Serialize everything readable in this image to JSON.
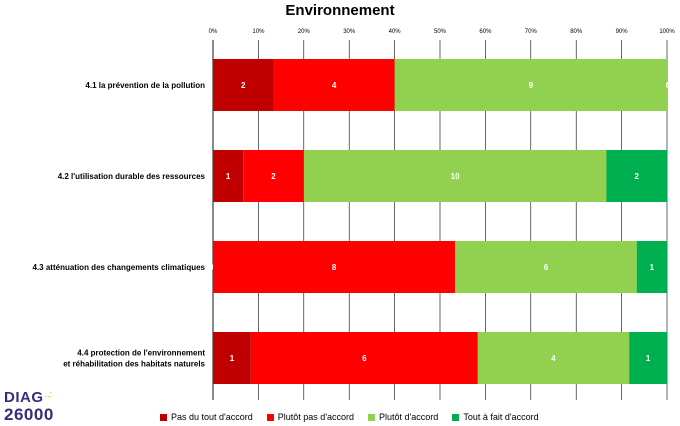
{
  "chart_data": {
    "type": "bar",
    "orientation": "horizontal",
    "stacked": "percent",
    "title": "Environnement",
    "x_ticks": [
      "0%",
      "10%",
      "20%",
      "30%",
      "40%",
      "50%",
      "60%",
      "70%",
      "80%",
      "90%",
      "100%"
    ],
    "xlim": [
      0,
      100
    ],
    "grid": true,
    "legend_position": "bottom",
    "categories": [
      "4.1 la prévention de la pollution",
      "4.2 l'utilisation durable des ressources",
      "4.3 atténuation des changements climatiques",
      "4.4 protection de l'environnement et réhabilitation des habitats naturels"
    ],
    "category_lines": [
      [
        "4.1 la prévention de la pollution"
      ],
      [
        "4.2 l'utilisation durable des ressources"
      ],
      [
        "4.3 atténuation des changements climatiques"
      ],
      [
        "4.4 protection de l'environnement",
        "et réhabilitation des habitats naturels"
      ]
    ],
    "series": [
      {
        "name": "Pas du tout d'accord",
        "color": "#c00000",
        "values": [
          2,
          1,
          0,
          1
        ]
      },
      {
        "name": "Plutôt pas d'accord",
        "color": "#ff0000",
        "values": [
          4,
          2,
          8,
          6
        ]
      },
      {
        "name": "Plutôt d'accord",
        "color": "#92d050",
        "values": [
          9,
          10,
          6,
          4
        ]
      },
      {
        "name": "Tout à fait d'accord",
        "color": "#00b050",
        "values": [
          0,
          2,
          1,
          1
        ]
      }
    ]
  },
  "logo": {
    "line1": "DIAG",
    "dots": "..:",
    "line2": "26000"
  }
}
